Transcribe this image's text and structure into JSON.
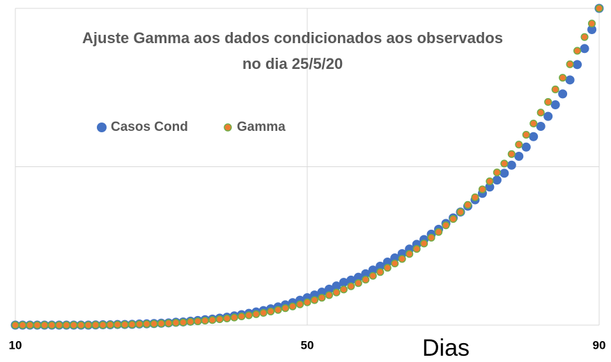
{
  "chart_data": {
    "type": "scatter",
    "title": "Ajuste Gamma aos dados condicionados aos observados no dia 25/5/20",
    "xlabel": "Dias",
    "x": [
      10,
      11,
      12,
      13,
      14,
      15,
      16,
      17,
      18,
      19,
      20,
      21,
      22,
      23,
      24,
      25,
      26,
      27,
      28,
      29,
      30,
      31,
      32,
      33,
      34,
      35,
      36,
      37,
      38,
      39,
      40,
      41,
      42,
      43,
      44,
      45,
      46,
      47,
      48,
      49,
      50,
      51,
      52,
      53,
      54,
      55,
      56,
      57,
      58,
      59,
      60,
      61,
      62,
      63,
      64,
      65,
      66,
      67,
      68,
      69,
      70,
      71,
      72,
      73,
      74,
      75,
      76,
      77,
      78,
      79,
      80,
      81,
      82,
      83,
      84,
      85,
      86,
      87,
      88,
      89,
      90
    ],
    "series": [
      {
        "name": "Casos Cond",
        "color": "#4472c4",
        "values": [
          0,
          0,
          0,
          0,
          0,
          0,
          0,
          0,
          0,
          0,
          0,
          0.001,
          0.002,
          0.002,
          0.004,
          0.004,
          0.005,
          0.007,
          0.008,
          0.01,
          0.012,
          0.014,
          0.018,
          0.02,
          0.025,
          0.029,
          0.034,
          0.038,
          0.044,
          0.05,
          0.058,
          0.066,
          0.074,
          0.083,
          0.092,
          0.103,
          0.115,
          0.128,
          0.142,
          0.157,
          0.173,
          0.19,
          0.208,
          0.227,
          0.247,
          0.27,
          0.284,
          0.302,
          0.324,
          0.348,
          0.372,
          0.398,
          0.424,
          0.451,
          0.48,
          0.51,
          0.54,
          0.574,
          0.605,
          0.642,
          0.677,
          0.714,
          0.751,
          0.791,
          0.832,
          0.872,
          0.916,
          0.959,
          1.01,
          1.066,
          1.124,
          1.19,
          1.255,
          1.318,
          1.391,
          1.46,
          1.548,
          1.645,
          1.746,
          1.866,
          2.0
        ]
      },
      {
        "name": "Gamma",
        "color": "#ed7d31",
        "edge": "#70ad47",
        "values": [
          0,
          0,
          0,
          0,
          0,
          0,
          0,
          0,
          0,
          0,
          0,
          0.001,
          0.001,
          0.002,
          0.003,
          0.003,
          0.004,
          0.006,
          0.007,
          0.008,
          0.01,
          0.012,
          0.015,
          0.017,
          0.021,
          0.024,
          0.028,
          0.032,
          0.037,
          0.042,
          0.048,
          0.055,
          0.062,
          0.069,
          0.077,
          0.086,
          0.096,
          0.107,
          0.118,
          0.131,
          0.144,
          0.158,
          0.173,
          0.189,
          0.206,
          0.225,
          0.245,
          0.265,
          0.287,
          0.311,
          0.335,
          0.362,
          0.389,
          0.418,
          0.449,
          0.481,
          0.515,
          0.552,
          0.588,
          0.63,
          0.67,
          0.714,
          0.759,
          0.807,
          0.857,
          0.908,
          0.964,
          1.02,
          1.08,
          1.14,
          1.202,
          1.273,
          1.342,
          1.409,
          1.488,
          1.562,
          1.647,
          1.732,
          1.819,
          1.904,
          2.0
        ]
      }
    ],
    "xlim": [
      10,
      90
    ],
    "xticks": [
      10,
      50,
      90
    ],
    "ylim": [
      0,
      2
    ],
    "yticks": [
      0,
      1,
      2
    ],
    "grid": true,
    "legend": "top-left"
  }
}
